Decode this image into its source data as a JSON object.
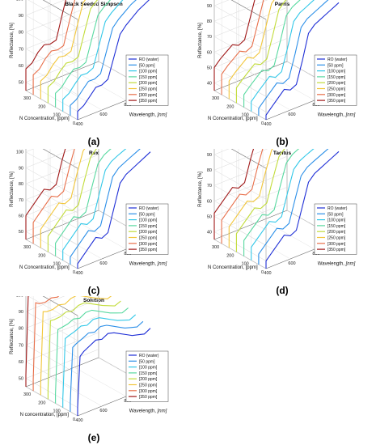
{
  "chart_data": [
    {
      "type": "line",
      "title": "Black Seeded Simpson",
      "panel_label": "(a)",
      "zlabel": "Reflectance, [%]",
      "ylabel": "N Concentration, [ppm]",
      "xlabel": "Wavelength,",
      "xlabel_unit": "[nm]",
      "x_ticks": [
        "400",
        "600",
        "800",
        "1000"
      ],
      "y_ticks": [
        "0",
        "100",
        "200",
        "300"
      ],
      "z_ticks": [
        "50",
        "60",
        "70",
        "80",
        "90",
        "100"
      ],
      "legend": [
        "RO (water)",
        "[50 ppm]",
        "[100 ppm]",
        "[150 ppm]",
        "[200 ppm]",
        "[250 ppm]",
        "[300 ppm]",
        "[350 ppm]"
      ],
      "xlim": [
        400,
        1000
      ],
      "ylim": [
        0,
        350
      ],
      "zlim": [
        45,
        105
      ],
      "wavelength": [
        400,
        450,
        500,
        550,
        600,
        650,
        700,
        750,
        800,
        850,
        900,
        950,
        1000
      ],
      "reflectance_low": [
        50,
        52,
        56,
        60,
        60,
        62,
        74,
        86,
        90,
        93,
        96,
        98,
        100
      ],
      "reflectance_high": [
        58,
        60,
        65,
        68,
        67,
        68,
        82,
        95,
        98,
        100,
        102,
        103,
        104
      ]
    },
    {
      "type": "line",
      "title": "Parris",
      "panel_label": "(b)",
      "zlabel": "Reflectance, [%]",
      "ylabel": "N Concentration, [ppm]",
      "xlabel": "Wavelength,",
      "xlabel_unit": "[nm]",
      "x_ticks": [
        "400",
        "600",
        "800",
        "1000"
      ],
      "y_ticks": [
        "0",
        "100",
        "200",
        "300"
      ],
      "z_ticks": [
        "40",
        "50",
        "60",
        "70",
        "80",
        "90"
      ],
      "legend": [
        "RO (water)",
        "[50 ppm]",
        "[100 ppm]",
        "[150 ppm]",
        "[200 ppm]",
        "[250 ppm]",
        "[300 ppm]",
        "[350 ppm]"
      ],
      "xlim": [
        400,
        1000
      ],
      "ylim": [
        0,
        350
      ],
      "zlim": [
        35,
        100
      ],
      "wavelength": [
        400,
        450,
        500,
        550,
        600,
        650,
        700,
        750,
        800,
        850,
        900,
        950,
        1000
      ],
      "reflectance_low": [
        38,
        42,
        46,
        50,
        48,
        50,
        64,
        80,
        84,
        86,
        88,
        90,
        92
      ],
      "reflectance_high": [
        50,
        54,
        57,
        60,
        58,
        60,
        74,
        88,
        92,
        94,
        96,
        98,
        99
      ]
    },
    {
      "type": "line",
      "title": "Rex",
      "panel_label": "(c)",
      "zlabel": "Reflectance, [%]",
      "ylabel": "N Concentration, [ppm]",
      "xlabel": "Wavelength,",
      "xlabel_unit": "[nm]",
      "x_ticks": [
        "400",
        "600",
        "800",
        "1000"
      ],
      "y_ticks": [
        "0",
        "100",
        "200",
        "300"
      ],
      "z_ticks": [
        "50",
        "60",
        "70",
        "80",
        "90",
        "100"
      ],
      "legend": [
        "RO (water)",
        "[50 ppm]",
        "[100 ppm]",
        "[150 ppm]",
        "[200 ppm]",
        "[250 ppm]",
        "[300 ppm]",
        "[350 ppm]"
      ],
      "xlim": [
        400,
        1000
      ],
      "ylim": [
        0,
        350
      ],
      "zlim": [
        45,
        108
      ],
      "wavelength": [
        400,
        450,
        500,
        550,
        600,
        650,
        700,
        750,
        800,
        850,
        900,
        950,
        1000
      ],
      "reflectance_low": [
        48,
        52,
        56,
        60,
        58,
        60,
        74,
        88,
        92,
        94,
        96,
        98,
        100
      ],
      "reflectance_high": [
        60,
        64,
        68,
        72,
        70,
        72,
        86,
        98,
        102,
        104,
        105,
        106,
        107
      ]
    },
    {
      "type": "line",
      "title": "Tacitus",
      "panel_label": "(d)",
      "zlabel": "Reflectance, [%]",
      "ylabel": "N Concentration, [ppm]",
      "xlabel": "Wavelength,",
      "xlabel_unit": "[nm]",
      "x_ticks": [
        "400",
        "600",
        "800",
        "1000"
      ],
      "y_ticks": [
        "0",
        "100",
        "200",
        "300"
      ],
      "z_ticks": [
        "40",
        "50",
        "60",
        "70",
        "80",
        "90"
      ],
      "legend": [
        "RO (water)",
        "[50 ppm]",
        "[100 ppm]",
        "[150 ppm]",
        "[200 ppm]",
        "[250 ppm]",
        "[300 ppm]",
        "[350 ppm]"
      ],
      "xlim": [
        400,
        1000
      ],
      "ylim": [
        0,
        350
      ],
      "zlim": [
        35,
        100
      ],
      "wavelength": [
        400,
        450,
        500,
        550,
        600,
        650,
        700,
        750,
        800,
        850,
        900,
        950,
        1000
      ],
      "reflectance_low": [
        40,
        44,
        48,
        52,
        50,
        52,
        66,
        80,
        84,
        86,
        88,
        90,
        92
      ],
      "reflectance_high": [
        52,
        56,
        60,
        64,
        62,
        64,
        78,
        90,
        94,
        96,
        97,
        98,
        99
      ]
    },
    {
      "type": "line",
      "title": "Solution",
      "panel_label": "(e)",
      "zlabel": "Reflectance, [%]",
      "ylabel": "N concentration, [ppm]",
      "xlabel": "Wavelength,",
      "xlabel_unit": "[nm]",
      "x_ticks": [
        "400",
        "600",
        "800",
        "1000"
      ],
      "y_ticks": [
        "0",
        "100",
        "200",
        "300"
      ],
      "z_ticks": [
        "50",
        "60",
        "70",
        "80",
        "90",
        "100"
      ],
      "legend": [
        "RO (water)",
        "[50 ppm]",
        "[100 ppm]",
        "[150 ppm]",
        "[200 ppm]",
        "[250 ppm]",
        "[300 ppm]",
        "[350 ppm]"
      ],
      "xlim": [
        400,
        1000
      ],
      "ylim": [
        0,
        350
      ],
      "zlim": [
        45,
        105
      ],
      "wavelength": [
        400,
        420,
        450,
        500,
        550,
        600,
        650,
        700,
        750,
        800,
        850,
        900,
        950,
        1000
      ],
      "reflectance_low": [
        50,
        80,
        82,
        84,
        86,
        85,
        87,
        86,
        84,
        82,
        80,
        79,
        78,
        80
      ],
      "reflectance_high": [
        52,
        100,
        98,
        97,
        98,
        97,
        99,
        100,
        98,
        96,
        94,
        92,
        90,
        91
      ]
    }
  ],
  "series_colors": [
    "#1f2fd6",
    "#2b8fe8",
    "#33c8e8",
    "#58d9a0",
    "#c2dc3a",
    "#f2c63a",
    "#e86f4a",
    "#a01818"
  ]
}
